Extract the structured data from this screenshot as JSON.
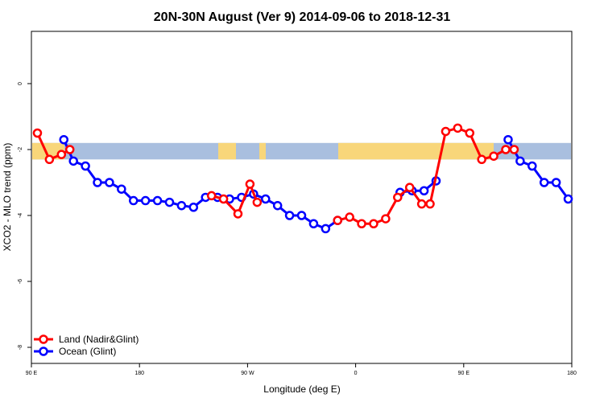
{
  "chart_data": {
    "type": "line",
    "title": "20N-30N August (Ver 9)   2014-09-06 to 2018-12-31",
    "xlabel": "Longitude (deg E)",
    "ylabel": "XCO2 - MLO trend (ppm)",
    "xlim": [
      90,
      540
    ],
    "ylim": [
      -8.1,
      1.5
    ],
    "x_ticks": [
      {
        "value": 90,
        "label": "90 E"
      },
      {
        "value": 180,
        "label": "180"
      },
      {
        "value": 270,
        "label": "90 W"
      },
      {
        "value": 360,
        "label": "0"
      },
      {
        "value": 450,
        "label": "90 E"
      },
      {
        "value": 540,
        "label": "180"
      }
    ],
    "y_ticks": [
      {
        "value": 0,
        "label": "0"
      },
      {
        "value": -2,
        "label": "-2"
      },
      {
        "value": -4,
        "label": "-4"
      },
      {
        "value": -6,
        "label": "-6"
      },
      {
        "value": -8,
        "label": "-8"
      }
    ],
    "map_strip": {
      "y_top": -1.8,
      "y_bottom": -2.3,
      "ocean_color": "#a9bfdf",
      "land_color": "#f8d67a"
    },
    "series": [
      {
        "name": "Land (Nadir&Glint)",
        "color": "#ff0000",
        "segments": [
          {
            "x": [
              95,
              105,
              115,
              122
            ],
            "y": [
              -1.5,
              -2.3,
              -2.15,
              -2.0
            ]
          },
          {
            "x": [
              240,
              250,
              262,
              272,
              278
            ],
            "y": [
              -3.4,
              -3.5,
              -3.95,
              -3.05,
              -3.6
            ]
          },
          {
            "x": [
              345,
              355,
              365,
              375,
              385,
              395,
              405,
              415,
              422,
              435,
              445,
              455,
              465,
              475,
              485,
              492
            ],
            "y": [
              -4.15,
              -4.05,
              -4.25,
              -4.25,
              -4.1,
              -3.45,
              -3.15,
              -3.65,
              -3.65,
              -1.45,
              -1.35,
              -1.5,
              -2.3,
              -2.2,
              -2.0,
              -2.0
            ]
          }
        ]
      },
      {
        "name": "Ocean (Glint)",
        "color": "#0000ff",
        "segments": [
          {
            "x": [
              117,
              125,
              135,
              145,
              155,
              165,
              175,
              185,
              195,
              205,
              215,
              225,
              235,
              245,
              255,
              265,
              275,
              285,
              295,
              305,
              315,
              325,
              335,
              345
            ],
            "y": [
              -1.7,
              -2.35,
              -2.5,
              -3.0,
              -3.0,
              -3.2,
              -3.55,
              -3.55,
              -3.55,
              -3.6,
              -3.7,
              -3.75,
              -3.45,
              -3.45,
              -3.5,
              -3.45,
              -3.35,
              -3.5,
              -3.7,
              -4.0,
              -4.0,
              -4.25,
              -4.4,
              -4.15
            ]
          },
          {
            "x": [
              397,
              407,
              417,
              427
            ],
            "y": [
              -3.3,
              -3.25,
              -3.25,
              -2.95
            ]
          },
          {
            "x": [
              487,
              497,
              507,
              517,
              527,
              537
            ],
            "y": [
              -1.7,
              -2.35,
              -2.5,
              -3.0,
              -3.0,
              -3.5
            ]
          }
        ]
      }
    ],
    "legend": {
      "position": "bottom-left"
    }
  }
}
